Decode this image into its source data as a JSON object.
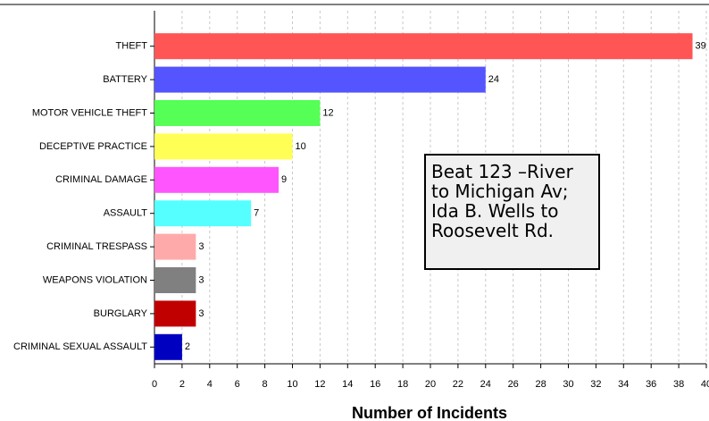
{
  "chart_data": {
    "type": "hbar",
    "categories": [
      "THEFT",
      "BATTERY",
      "MOTOR VEHICLE THEFT",
      "DECEPTIVE PRACTICE",
      "CRIMINAL DAMAGE",
      "ASSAULT",
      "CRIMINAL TRESPASS",
      "WEAPONS VIOLATION",
      "BURGLARY",
      "CRIMINAL SEXUAL ASSAULT"
    ],
    "values": [
      39,
      24,
      12,
      10,
      9,
      7,
      3,
      3,
      3,
      2
    ],
    "colors": [
      "#ff5555",
      "#5555ff",
      "#55ff55",
      "#ffff55",
      "#ff55ff",
      "#55ffff",
      "#ffaaaa",
      "#808080",
      "#c00000",
      "#0000c0"
    ],
    "xlabel": "Number of Incidents",
    "xlim": [
      0,
      40
    ],
    "xticks": [
      0,
      2,
      4,
      6,
      8,
      10,
      12,
      14,
      16,
      18,
      20,
      22,
      24,
      26,
      28,
      30,
      32,
      34,
      36,
      38,
      40
    ],
    "grid": true,
    "annotation": [
      "Beat 123 –River",
      "to Michigan Av;",
      "Ida B. Wells to",
      "Roosevelt Rd."
    ]
  }
}
